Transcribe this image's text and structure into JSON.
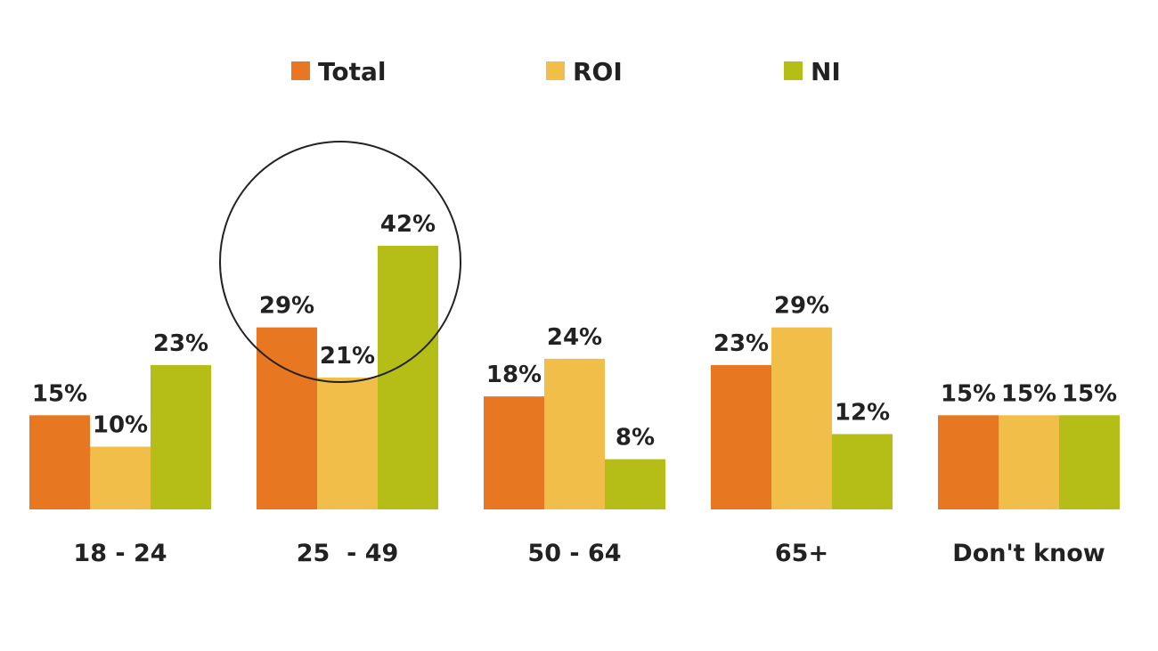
{
  "chart_data": {
    "type": "bar",
    "categories": [
      "18 - 24",
      "25  - 49",
      "50 - 64",
      "65+",
      "Don't know"
    ],
    "series": [
      {
        "name": "Total",
        "color": "#E87722",
        "values": [
          15,
          29,
          18,
          23,
          15
        ],
        "labels": [
          "15%",
          "29%",
          "18%",
          "23%",
          "15%"
        ]
      },
      {
        "name": "ROI",
        "color": "#F2BE4A",
        "values": [
          10,
          21,
          24,
          29,
          15
        ],
        "labels": [
          "10%",
          "21%",
          "24%",
          "29%",
          "15%"
        ]
      },
      {
        "name": "NI",
        "color": "#B5BE16",
        "values": [
          23,
          42,
          8,
          12,
          15
        ],
        "labels": [
          "23%",
          "42%",
          "8%",
          "12%",
          "15%"
        ]
      }
    ],
    "ylim": [
      0,
      42
    ],
    "title": "",
    "xlabel": "",
    "ylabel": "",
    "grid": false,
    "legend_position": "top-center",
    "annotations": [
      {
        "type": "circle",
        "category": "25  - 49",
        "note": "highlight"
      }
    ]
  }
}
